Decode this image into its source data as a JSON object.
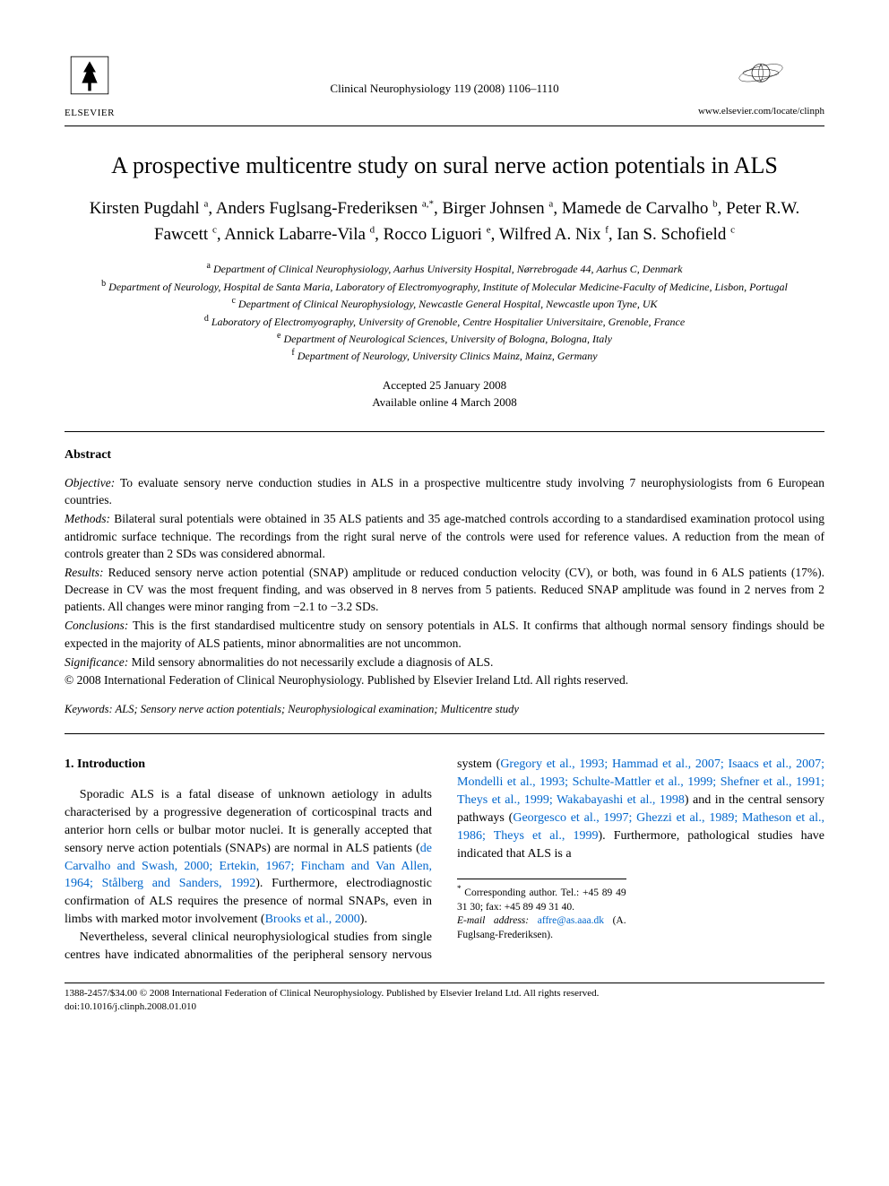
{
  "header": {
    "publisher_name": "ELSEVIER",
    "journal_ref": "Clinical Neurophysiology 119 (2008) 1106–1110",
    "journal_url": "www.elsevier.com/locate/clinph"
  },
  "title": "A prospective multicentre study on sural nerve action potentials in ALS",
  "authors_html": "Kirsten Pugdahl <sup>a</sup>, Anders Fuglsang-Frederiksen <sup>a,*</sup>, Birger Johnsen <sup>a</sup>, Mamede de Carvalho <sup>b</sup>, Peter R.W. Fawcett <sup>c</sup>, Annick Labarre-Vila <sup>d</sup>, Rocco Liguori <sup>e</sup>, Wilfred A. Nix <sup>f</sup>, Ian S. Schofield <sup>c</sup>",
  "affiliations": [
    {
      "sup": "a",
      "text": "Department of Clinical Neurophysiology, Aarhus University Hospital, Nørrebrogade 44, Aarhus C, Denmark"
    },
    {
      "sup": "b",
      "text": "Department of Neurology, Hospital de Santa Maria, Laboratory of Electromyography, Institute of Molecular Medicine-Faculty of Medicine, Lisbon, Portugal"
    },
    {
      "sup": "c",
      "text": "Department of Clinical Neurophysiology, Newcastle General Hospital, Newcastle upon Tyne, UK"
    },
    {
      "sup": "d",
      "text": "Laboratory of Electromyography, University of Grenoble, Centre Hospitalier Universitaire, Grenoble, France"
    },
    {
      "sup": "e",
      "text": "Department of Neurological Sciences, University of Bologna, Bologna, Italy"
    },
    {
      "sup": "f",
      "text": "Department of Neurology, University Clinics Mainz, Mainz, Germany"
    }
  ],
  "dates": {
    "accepted": "Accepted 25 January 2008",
    "online": "Available online 4 March 2008"
  },
  "abstract": {
    "heading": "Abstract",
    "items": [
      {
        "label": "Objective:",
        "text": " To evaluate sensory nerve conduction studies in ALS in a prospective multicentre study involving 7 neurophysiologists from 6 European countries."
      },
      {
        "label": "Methods:",
        "text": " Bilateral sural potentials were obtained in 35 ALS patients and 35 age-matched controls according to a standardised examination protocol using antidromic surface technique. The recordings from the right sural nerve of the controls were used for reference values. A reduction from the mean of controls greater than 2 SDs was considered abnormal."
      },
      {
        "label": "Results:",
        "text": " Reduced sensory nerve action potential (SNAP) amplitude or reduced conduction velocity (CV), or both, was found in 6 ALS patients (17%). Decrease in CV was the most frequent finding, and was observed in 8 nerves from 5 patients. Reduced SNAP amplitude was found in 2 nerves from 2 patients. All changes were minor ranging from −2.1 to −3.2 SDs."
      },
      {
        "label": "Conclusions:",
        "text": " This is the first standardised multicentre study on sensory potentials in ALS. It confirms that although normal sensory findings should be expected in the majority of ALS patients, minor abnormalities are not uncommon."
      },
      {
        "label": "Significance:",
        "text": " Mild sensory abnormalities do not necessarily exclude a diagnosis of ALS."
      }
    ],
    "copyright": "© 2008 International Federation of Clinical Neurophysiology. Published by Elsevier Ireland Ltd. All rights reserved."
  },
  "keywords": {
    "label": "Keywords:",
    "text": " ALS; Sensory nerve action potentials; Neurophysiological examination; Multicentre study"
  },
  "section1": {
    "heading": "1. Introduction",
    "para1_pre": "Sporadic ALS is a fatal disease of unknown aetiology in adults characterised by a progressive degeneration of corticospinal tracts and anterior horn cells or bulbar motor nuclei. It is generally accepted that sensory nerve action potentials (SNAPs) are normal in ALS patients (",
    "para1_cite1": "de Carvalho and Swash, 2000; Ertekin, 1967; Fincham and Van Allen, 1964; Stålberg and Sanders, 1992",
    "para1_mid": "). Furthermore, electrodiagnostic confirmation of ALS requires the presence of normal SNAPs, even in limbs with marked motor involvement (",
    "para1_cite2": "Brooks et al., 2000",
    "para1_post": ").",
    "para2_pre": "Nevertheless, several clinical neurophysiological studies from single centres have indicated abnormalities of the peripheral sensory nervous system (",
    "para2_cite1": "Gregory et al., 1993; Hammad et al., 2007; Isaacs et al., 2007; Mondelli et al., 1993; Schulte-Mattler et al., 1999; Shefner et al., 1991; Theys et al., 1999; Wakabayashi et al., 1998",
    "para2_mid": ") and in the central sensory pathways (",
    "para2_cite2": "Georgesco et al., 1997; Ghezzi et al., 1989; Matheson et al., 1986; Theys et al., 1999",
    "para2_post": "). Furthermore, pathological studies have indicated that ALS is a"
  },
  "corresponding": {
    "line1": "Corresponding author. Tel.: +45 89 49 31 30; fax: +45 89 49 31 40.",
    "email_label": "E-mail address:",
    "email": "affre@as.aaa.dk",
    "email_name": " (A. Fuglsang-Frederiksen)."
  },
  "footer": {
    "line1": "1388-2457/$34.00 © 2008 International Federation of Clinical Neurophysiology. Published by Elsevier Ireland Ltd. All rights reserved.",
    "line2": "doi:10.1016/j.clinph.2008.01.010"
  },
  "colors": {
    "text": "#000000",
    "bg": "#ffffff",
    "link": "#0066cc",
    "rule": "#000000"
  },
  "typography": {
    "title_fontsize": 26,
    "authors_fontsize": 19,
    "affil_fontsize": 12,
    "body_fontsize": 14,
    "abstract_fontsize": 13.5,
    "footer_fontsize": 11
  }
}
